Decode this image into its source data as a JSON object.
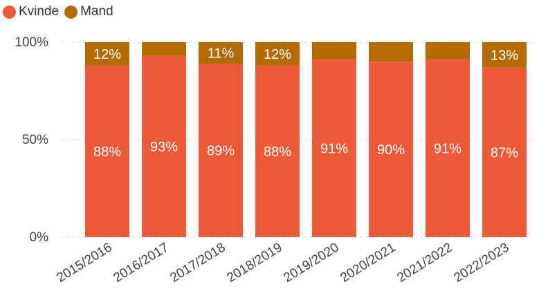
{
  "legend": [
    {
      "label": "Kvinde",
      "color": "#ED5A39"
    },
    {
      "label": "Mand",
      "color": "#B36A00"
    }
  ],
  "chart_data": {
    "type": "bar",
    "stacked": true,
    "percent": true,
    "categories": [
      "2015/2016",
      "2016/2017",
      "2017/2018",
      "2018/2019",
      "2019/2020",
      "2020/2021",
      "2021/2022",
      "2022/2023"
    ],
    "series": [
      {
        "name": "Kvinde",
        "color": "#ED5A39",
        "values": [
          88,
          93,
          89,
          88,
          91,
          90,
          91,
          87
        ],
        "labels": [
          "88%",
          "93%",
          "89%",
          "88%",
          "91%",
          "90%",
          "91%",
          "87%"
        ]
      },
      {
        "name": "Mand",
        "color": "#B36A00",
        "values": [
          12,
          7,
          11,
          12,
          9,
          10,
          9,
          13
        ],
        "labels": [
          "12%",
          "",
          "11%",
          "12%",
          "",
          "",
          "",
          "13%"
        ]
      }
    ],
    "yticks": [
      "0%",
      "50%",
      "100%"
    ],
    "ylim": [
      0,
      100
    ],
    "grid": true,
    "legend_position": "top-left",
    "xlabel": "",
    "ylabel": ""
  }
}
